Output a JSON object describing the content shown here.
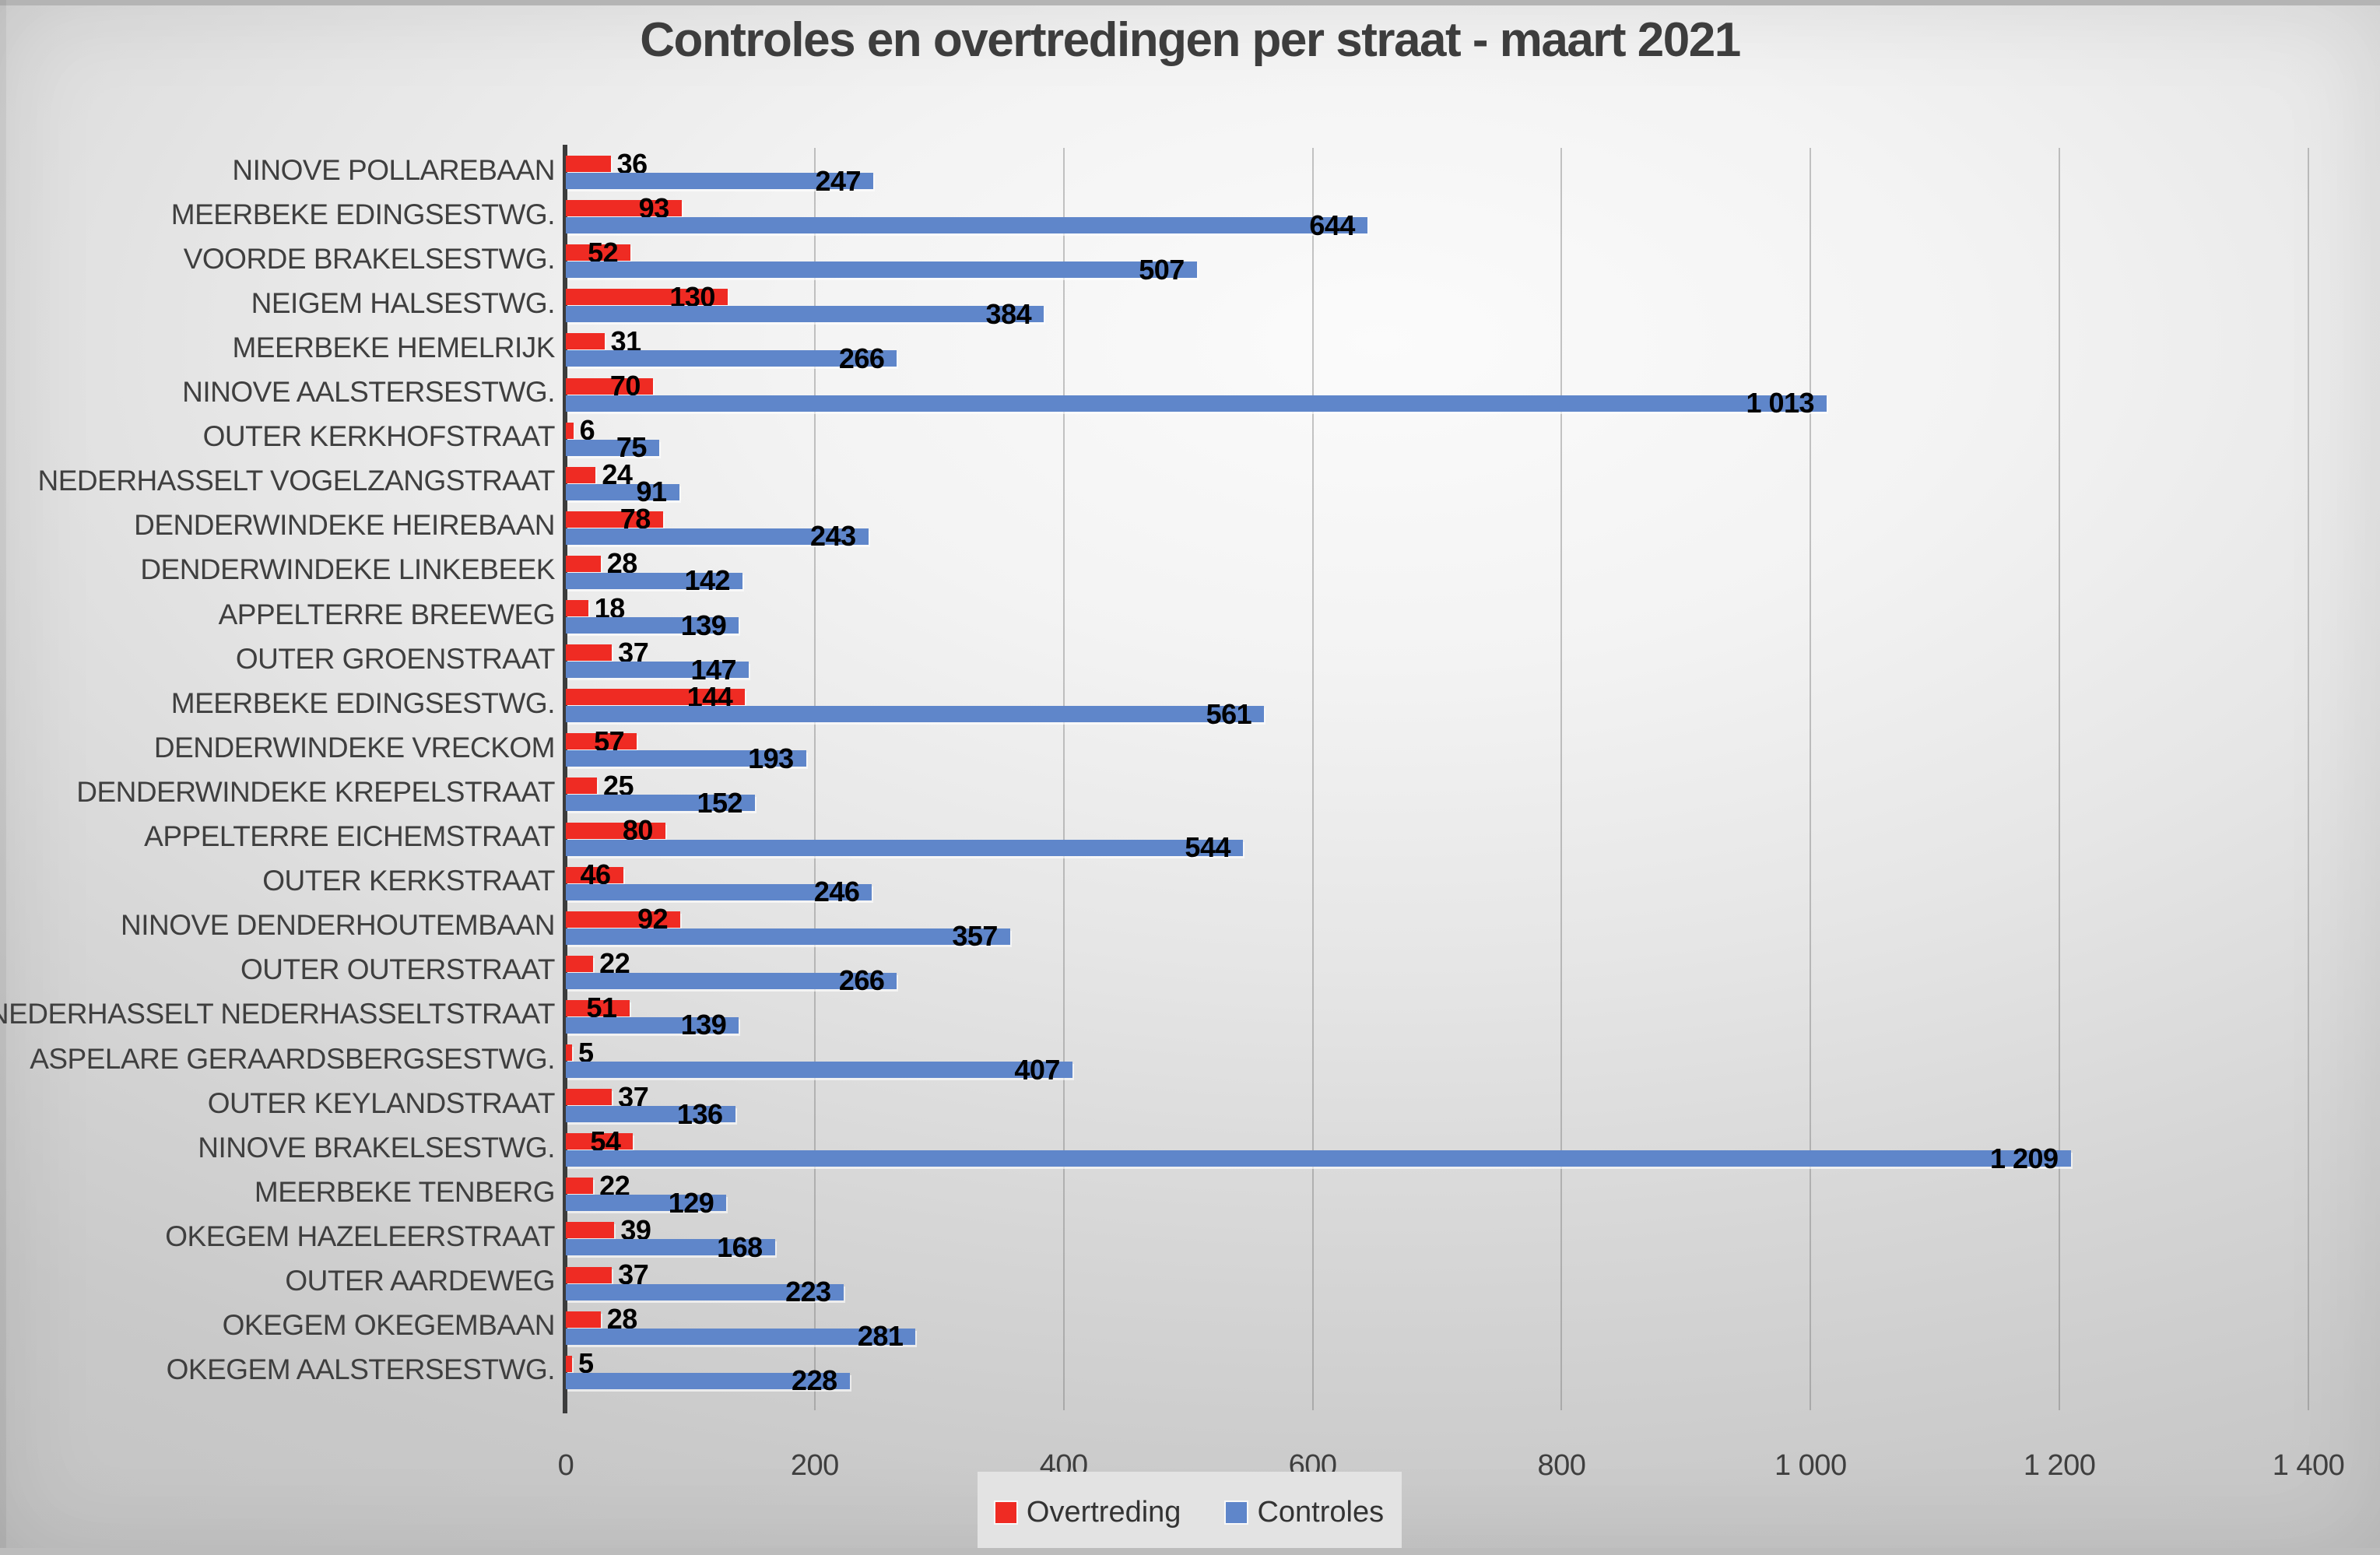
{
  "title": "Controles en overtredingen per straat - maart 2021",
  "chart_data": {
    "type": "bar",
    "orientation": "horizontal",
    "title": "Controles en overtredingen per straat - maart 2021",
    "categories": [
      "NINOVE POLLAREBAAN",
      "MEERBEKE EDINGSESTWG.",
      "VOORDE BRAKELSESTWG.",
      "NEIGEM HALSESTWG.",
      "MEERBEKE HEMELRIJK",
      "NINOVE AALSTERSESTWG.",
      "OUTER KERKHOFSTRAAT",
      "NEDERHASSELT VOGELZANGSTRAAT",
      "DENDERWINDEKE HEIREBAAN",
      "DENDERWINDEKE LINKEBEEK",
      "APPELTERRE BREEWEG",
      "OUTER GROENSTRAAT",
      "MEERBEKE EDINGSESTWG.",
      "DENDERWINDEKE VRECKOM",
      "DENDERWINDEKE KREPELSTRAAT",
      "APPELTERRE EICHEMSTRAAT",
      "OUTER KERKSTRAAT",
      "NINOVE DENDERHOUTEMBAAN",
      "OUTER OUTERSTRAAT",
      "NEDERHASSELT NEDERHASSELTSTRAAT",
      "ASPELARE GERAARDSBERGSESTWG.",
      "OUTER KEYLANDSTRAAT",
      "NINOVE BRAKELSESTWG.",
      "MEERBEKE TENBERG",
      "OKEGEM HAZELEERSTRAAT",
      "OUTER AARDEWEG",
      "OKEGEM OKEGEMBAAN",
      "OKEGEM AALSTERSESTWG."
    ],
    "series": [
      {
        "name": "Overtreding",
        "color": "#ef2b23",
        "values": [
          36,
          93,
          52,
          130,
          31,
          70,
          6,
          24,
          78,
          28,
          18,
          37,
          144,
          57,
          25,
          80,
          46,
          92,
          22,
          51,
          5,
          37,
          54,
          22,
          39,
          37,
          28,
          5
        ]
      },
      {
        "name": "Controles",
        "color": "#5f86ca",
        "values": [
          247,
          644,
          507,
          384,
          266,
          1013,
          75,
          91,
          243,
          142,
          139,
          147,
          561,
          193,
          152,
          544,
          246,
          357,
          266,
          139,
          407,
          136,
          1209,
          129,
          168,
          223,
          281,
          228
        ]
      }
    ],
    "xlim": [
      0,
      1400
    ],
    "xticks": [
      0,
      200,
      400,
      600,
      800,
      1000,
      1200,
      1400
    ],
    "xtick_labels": [
      "0",
      "200",
      "400",
      "600",
      "800",
      "1 000",
      "1 200",
      "1 400"
    ],
    "grid": "vertical-gridlines-on",
    "data_labels": "shown-at-bar-end",
    "legend_position": "bottom-center",
    "colors": {
      "axis_line": "#3c3c3c",
      "gridline": "#9d9d9d",
      "text": "#3f3f3f",
      "data_label": "#000000",
      "legend_background": "#e3e3e3"
    }
  },
  "legend": {
    "items": [
      {
        "label": "Overtreding",
        "color": "#ef2b23"
      },
      {
        "label": "Controles",
        "color": "#5f86ca"
      }
    ]
  }
}
